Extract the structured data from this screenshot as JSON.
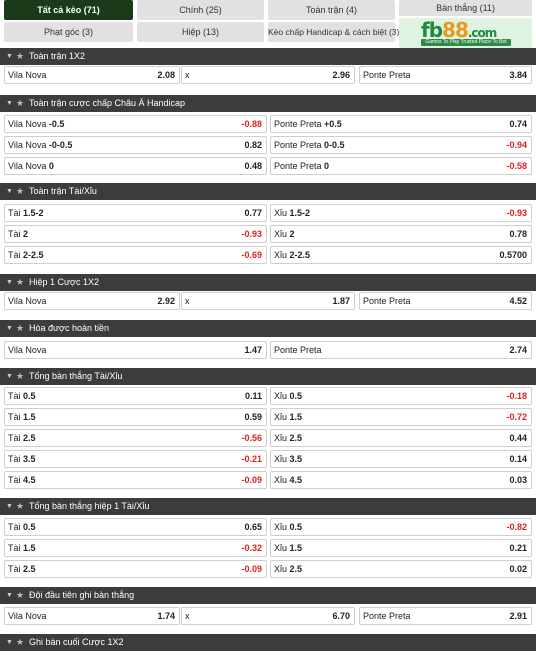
{
  "tabs": {
    "all": "Tất cả kèo (71)",
    "main": "Chính (25)",
    "full_match": "Toàn trận (4)",
    "goals": "Bàn thắng (11)",
    "corners": "Phạt góc (3)",
    "halves": "Hiệp (13)",
    "handicap_margin": "Kèo chấp Handicap & cách biệt (3)"
  },
  "logo": {
    "brand_a": "fb",
    "brand_b": "88",
    "brand_c": ".com",
    "tagline": "Games To Play  Trusted Place To Bet"
  },
  "colors": {
    "header_bg": "#3c3c3c",
    "tab_active": "#1a3a1a",
    "negative": "#e02020"
  },
  "sections": [
    {
      "title": "Toàn trận 1X2",
      "rows": [
        [
          {
            "team": "Vila Nova",
            "line": "",
            "odds": "2.08"
          },
          {
            "team": "x",
            "line": "",
            "odds": "2.96"
          },
          {
            "team": "Ponte Preta",
            "line": "",
            "odds": "3.84"
          }
        ]
      ]
    },
    {
      "title": "Toàn trận cược chấp Châu Á Handicap",
      "rows": [
        [
          {
            "team": "Vila Nova",
            "line": "-0.5",
            "odds": "-0.88"
          },
          {
            "team": "Ponte Preta",
            "line": "+0.5",
            "odds": "0.74"
          }
        ],
        [
          {
            "team": "Vila Nova",
            "line": "-0-0.5",
            "odds": "0.82"
          },
          {
            "team": "Ponte Preta",
            "line": "0-0.5",
            "odds": "-0.94"
          }
        ],
        [
          {
            "team": "Vila Nova",
            "line": "0",
            "odds": "0.48"
          },
          {
            "team": "Ponte Preta",
            "line": "0",
            "odds": "-0.58"
          }
        ]
      ]
    },
    {
      "title": "Toàn trận Tài/Xỉu",
      "rows": [
        [
          {
            "team": "Tài",
            "line": "1.5-2",
            "odds": "0.77"
          },
          {
            "team": "Xỉu",
            "line": "1.5-2",
            "odds": "-0.93"
          }
        ],
        [
          {
            "team": "Tài",
            "line": "2",
            "odds": "-0.93"
          },
          {
            "team": "Xỉu",
            "line": "2",
            "odds": "0.78"
          }
        ],
        [
          {
            "team": "Tài",
            "line": "2-2.5",
            "odds": "-0.69"
          },
          {
            "team": "Xỉu",
            "line": "2-2.5",
            "odds": "0.5700"
          }
        ]
      ]
    },
    {
      "title": "Hiệp 1 Cược 1X2",
      "rows": [
        [
          {
            "team": "Vila Nova",
            "line": "",
            "odds": "2.92"
          },
          {
            "team": "x",
            "line": "",
            "odds": "1.87"
          },
          {
            "team": "Ponte Preta",
            "line": "",
            "odds": "4.52"
          }
        ]
      ]
    },
    {
      "title": "Hòa được hoàn tiền",
      "rows": [
        [
          {
            "team": "Vila Nova",
            "line": "",
            "odds": "1.47"
          },
          {
            "team": "Ponte Preta",
            "line": "",
            "odds": "2.74"
          }
        ]
      ]
    },
    {
      "title": "Tổng bàn thắng Tài/Xỉu",
      "rows": [
        [
          {
            "team": "Tài",
            "line": "0.5",
            "odds": "0.11"
          },
          {
            "team": "Xỉu",
            "line": "0.5",
            "odds": "-0.18"
          }
        ],
        [
          {
            "team": "Tài",
            "line": "1.5",
            "odds": "0.59"
          },
          {
            "team": "Xỉu",
            "line": "1.5",
            "odds": "-0.72"
          }
        ],
        [
          {
            "team": "Tài",
            "line": "2.5",
            "odds": "-0.56"
          },
          {
            "team": "Xỉu",
            "line": "2.5",
            "odds": "0.44"
          }
        ],
        [
          {
            "team": "Tài",
            "line": "3.5",
            "odds": "-0.21"
          },
          {
            "team": "Xỉu",
            "line": "3.5",
            "odds": "0.14"
          }
        ],
        [
          {
            "team": "Tài",
            "line": "4.5",
            "odds": "-0.09"
          },
          {
            "team": "Xỉu",
            "line": "4.5",
            "odds": "0.03"
          }
        ]
      ]
    },
    {
      "title": "Tổng bàn thắng hiệp 1 Tài/Xỉu",
      "rows": [
        [
          {
            "team": "Tài",
            "line": "0.5",
            "odds": "0.65"
          },
          {
            "team": "Xỉu",
            "line": "0.5",
            "odds": "-0.82"
          }
        ],
        [
          {
            "team": "Tài",
            "line": "1.5",
            "odds": "-0.32"
          },
          {
            "team": "Xỉu",
            "line": "1.5",
            "odds": "0.21"
          }
        ],
        [
          {
            "team": "Tài",
            "line": "2.5",
            "odds": "-0.09"
          },
          {
            "team": "Xỉu",
            "line": "2.5",
            "odds": "0.02"
          }
        ]
      ]
    },
    {
      "title": "Đội đầu tiên ghi bàn thắng",
      "rows": [
        [
          {
            "team": "Vila Nova",
            "line": "",
            "odds": "1.74"
          },
          {
            "team": "x",
            "line": "",
            "odds": "6.70"
          },
          {
            "team": "Ponte Preta",
            "line": "",
            "odds": "2.91"
          }
        ]
      ]
    },
    {
      "title": "Ghi bàn cuối Cược 1X2",
      "rows": []
    }
  ]
}
